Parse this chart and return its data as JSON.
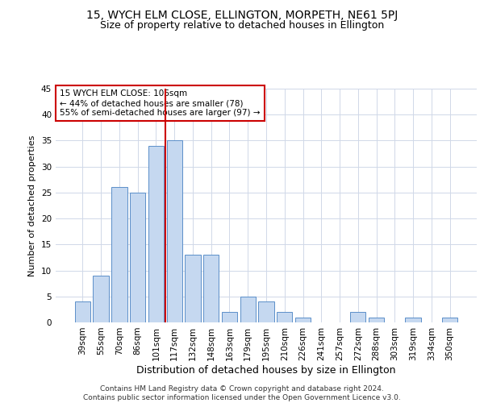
{
  "title1": "15, WYCH ELM CLOSE, ELLINGTON, MORPETH, NE61 5PJ",
  "title2": "Size of property relative to detached houses in Ellington",
  "xlabel": "Distribution of detached houses by size in Ellington",
  "ylabel": "Number of detached properties",
  "categories": [
    "39sqm",
    "55sqm",
    "70sqm",
    "86sqm",
    "101sqm",
    "117sqm",
    "132sqm",
    "148sqm",
    "163sqm",
    "179sqm",
    "195sqm",
    "210sqm",
    "226sqm",
    "241sqm",
    "257sqm",
    "272sqm",
    "288sqm",
    "303sqm",
    "319sqm",
    "334sqm",
    "350sqm"
  ],
  "values": [
    4,
    9,
    26,
    25,
    34,
    35,
    13,
    13,
    2,
    5,
    4,
    2,
    1,
    0,
    0,
    2,
    1,
    0,
    1,
    0,
    1
  ],
  "bar_color": "#c5d8f0",
  "bar_edge_color": "#5b8fc9",
  "vline_x_index": 5,
  "vline_color": "#cc0000",
  "annotation_line1": "15 WYCH ELM CLOSE: 106sqm",
  "annotation_line2": "← 44% of detached houses are smaller (78)",
  "annotation_line3": "55% of semi-detached houses are larger (97) →",
  "annotation_box_color": "#cc0000",
  "ylim": [
    0,
    45
  ],
  "yticks": [
    0,
    5,
    10,
    15,
    20,
    25,
    30,
    35,
    40,
    45
  ],
  "footer_line1": "Contains HM Land Registry data © Crown copyright and database right 2024.",
  "footer_line2": "Contains public sector information licensed under the Open Government Licence v3.0.",
  "bg_color": "#ffffff",
  "grid_color": "#d0d8e8",
  "title1_fontsize": 10,
  "title2_fontsize": 9,
  "xlabel_fontsize": 9,
  "ylabel_fontsize": 8,
  "tick_fontsize": 7.5,
  "annotation_fontsize": 7.5,
  "footer_fontsize": 6.5
}
